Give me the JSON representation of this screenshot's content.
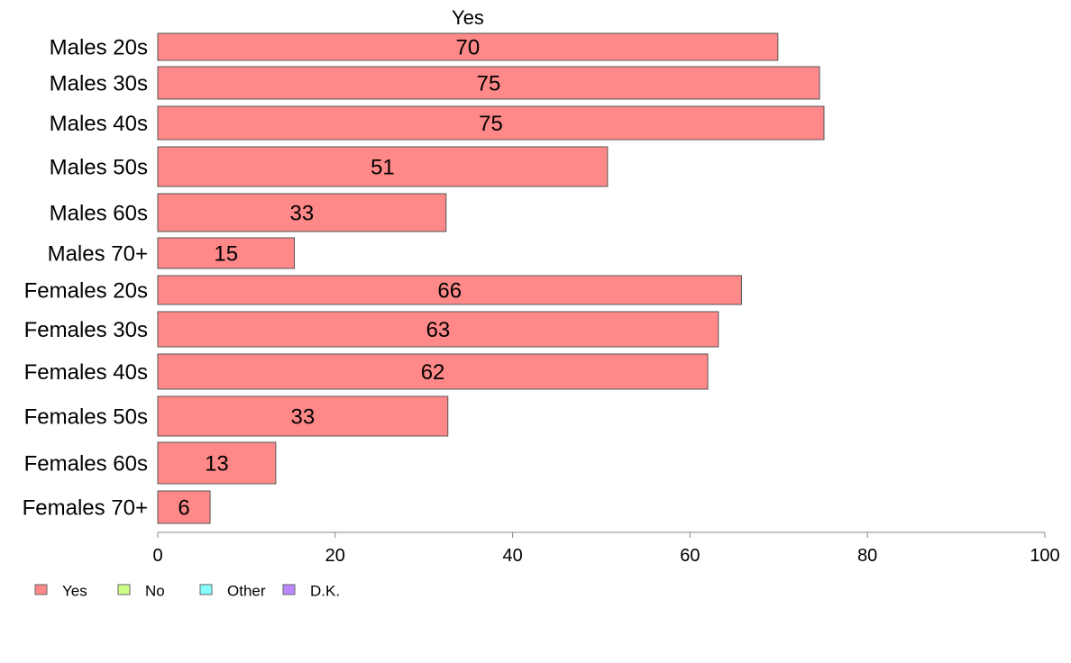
{
  "chart_data": {
    "type": "bar",
    "orientation": "horizontal",
    "title": "Yes",
    "categories": [
      "Males 20s",
      "Males 30s",
      "Males 40s",
      "Males 50s",
      "Males 60s",
      "Males 70+",
      "Females 20s",
      "Females 30s",
      "Females 40s",
      "Females 50s",
      "Females 60s",
      "Females 70+"
    ],
    "series": [
      {
        "name": "Yes",
        "color": "#ff8888",
        "values": [
          70,
          75,
          75,
          51,
          33,
          15,
          66,
          63,
          62,
          33,
          13,
          6
        ],
        "bar_values": [
          69.9,
          74.6,
          75.1,
          50.7,
          32.5,
          15.4,
          65.8,
          63.2,
          62.0,
          32.7,
          13.3,
          5.9
        ]
      }
    ],
    "xlim": [
      0,
      100
    ],
    "xticks": [
      0,
      20,
      40,
      60,
      80,
      100
    ],
    "grid": false,
    "legend": {
      "position": "bottom-left",
      "items": [
        {
          "label": "Yes",
          "color": "#ff8888"
        },
        {
          "label": "No",
          "color": "#ccff88"
        },
        {
          "label": "Other",
          "color": "#88ffff"
        },
        {
          "label": "D.K.",
          "color": "#bb88ff"
        }
      ]
    }
  }
}
